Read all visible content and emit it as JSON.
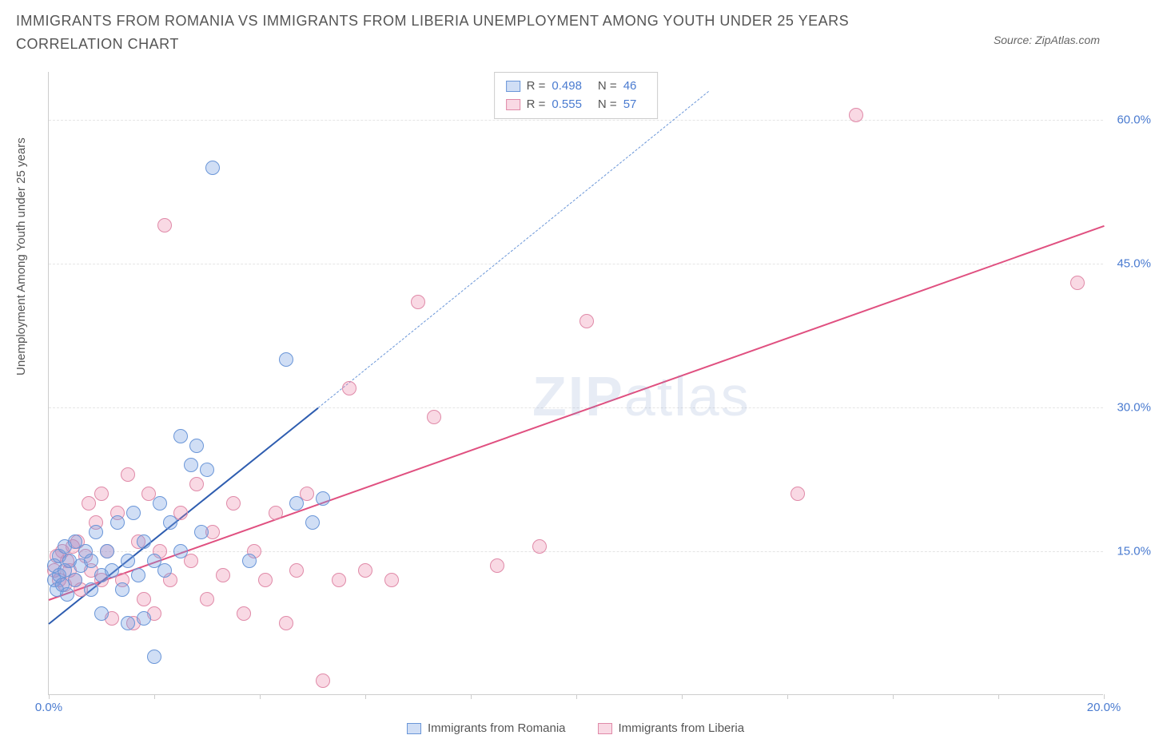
{
  "title": "IMMIGRANTS FROM ROMANIA VS IMMIGRANTS FROM LIBERIA UNEMPLOYMENT AMONG YOUTH UNDER 25 YEARS CORRELATION CHART",
  "source_label": "Source: ZipAtlas.com",
  "y_axis_label": "Unemployment Among Youth under 25 years",
  "watermark_bold": "ZIP",
  "watermark_rest": "atlas",
  "colors": {
    "series_a_fill": "rgba(120,160,225,0.35)",
    "series_a_stroke": "#6a96d8",
    "series_a_line": "#2e5db0",
    "series_b_fill": "rgba(235,130,165,0.3)",
    "series_b_stroke": "#e08aa8",
    "series_b_line": "#e05080",
    "axis_text": "#4a7bd0",
    "grid": "#e5e5e5",
    "title_text": "#555555"
  },
  "chart": {
    "type": "scatter",
    "x_min": 0,
    "x_max": 20,
    "y_min": 0,
    "y_max": 65,
    "y_ticks": [
      15,
      30,
      45,
      60
    ],
    "y_tick_labels": [
      "15.0%",
      "30.0%",
      "45.0%",
      "60.0%"
    ],
    "x_ticks": [
      0,
      2,
      4,
      6,
      8,
      10,
      12,
      14,
      16,
      18,
      20
    ],
    "x_tick_labels_shown": {
      "0": "0.0%",
      "20": "20.0%"
    },
    "point_radius": 9
  },
  "legend_top": [
    {
      "swatch_fill": "rgba(120,160,225,0.35)",
      "swatch_stroke": "#6a96d8",
      "r_label": "R =",
      "r_val": "0.498",
      "n_label": "N =",
      "n_val": "46"
    },
    {
      "swatch_fill": "rgba(235,130,165,0.3)",
      "swatch_stroke": "#e08aa8",
      "r_label": "R =",
      "r_val": "0.555",
      "n_label": "N =",
      "n_val": "57"
    }
  ],
  "legend_bottom": [
    {
      "swatch_fill": "rgba(120,160,225,0.35)",
      "swatch_stroke": "#6a96d8",
      "label": "Immigrants from Romania"
    },
    {
      "swatch_fill": "rgba(235,130,165,0.3)",
      "swatch_stroke": "#e08aa8",
      "label": "Immigrants from Liberia"
    }
  ],
  "series_a": {
    "name": "Immigrants from Romania",
    "trend_solid": {
      "x1": 0,
      "y1": 7.5,
      "x2": 5.1,
      "y2": 30
    },
    "trend_dash": {
      "x1": 5.1,
      "y1": 30,
      "x2": 12.5,
      "y2": 63
    },
    "points": [
      [
        0.1,
        12
      ],
      [
        0.1,
        13.5
      ],
      [
        0.15,
        11
      ],
      [
        0.2,
        14.5
      ],
      [
        0.2,
        12.5
      ],
      [
        0.25,
        11.5
      ],
      [
        0.3,
        13
      ],
      [
        0.3,
        15.5
      ],
      [
        0.35,
        10.5
      ],
      [
        0.4,
        14
      ],
      [
        0.5,
        12
      ],
      [
        0.5,
        16
      ],
      [
        0.6,
        13.5
      ],
      [
        0.7,
        15
      ],
      [
        0.8,
        11
      ],
      [
        0.8,
        14
      ],
      [
        0.9,
        17
      ],
      [
        1.0,
        12.5
      ],
      [
        1.0,
        8.5
      ],
      [
        1.1,
        15
      ],
      [
        1.2,
        13
      ],
      [
        1.3,
        18
      ],
      [
        1.4,
        11
      ],
      [
        1.5,
        14
      ],
      [
        1.5,
        7.5
      ],
      [
        1.6,
        19
      ],
      [
        1.7,
        12.5
      ],
      [
        1.8,
        16
      ],
      [
        1.8,
        8
      ],
      [
        2.0,
        14
      ],
      [
        2.0,
        4
      ],
      [
        2.1,
        20
      ],
      [
        2.2,
        13
      ],
      [
        2.3,
        18
      ],
      [
        2.5,
        15
      ],
      [
        2.5,
        27
      ],
      [
        2.7,
        24
      ],
      [
        2.8,
        26
      ],
      [
        2.9,
        17
      ],
      [
        3.0,
        23.5
      ],
      [
        3.1,
        55
      ],
      [
        3.8,
        14
      ],
      [
        4.5,
        35
      ],
      [
        4.7,
        20
      ],
      [
        5.0,
        18
      ],
      [
        5.2,
        20.5
      ]
    ]
  },
  "series_b": {
    "name": "Immigrants from Liberia",
    "trend_solid": {
      "x1": 0,
      "y1": 10,
      "x2": 20,
      "y2": 49
    },
    "points": [
      [
        0.1,
        13
      ],
      [
        0.15,
        14.5
      ],
      [
        0.2,
        12
      ],
      [
        0.25,
        15
      ],
      [
        0.3,
        11.5
      ],
      [
        0.35,
        14
      ],
      [
        0.4,
        13
      ],
      [
        0.45,
        15.5
      ],
      [
        0.5,
        12
      ],
      [
        0.55,
        16
      ],
      [
        0.6,
        11
      ],
      [
        0.7,
        14.5
      ],
      [
        0.75,
        20
      ],
      [
        0.8,
        13
      ],
      [
        0.9,
        18
      ],
      [
        1.0,
        12
      ],
      [
        1.0,
        21
      ],
      [
        1.1,
        15
      ],
      [
        1.2,
        8
      ],
      [
        1.3,
        19
      ],
      [
        1.4,
        12
      ],
      [
        1.5,
        23
      ],
      [
        1.6,
        7.5
      ],
      [
        1.7,
        16
      ],
      [
        1.8,
        10
      ],
      [
        1.9,
        21
      ],
      [
        2.0,
        8.5
      ],
      [
        2.1,
        15
      ],
      [
        2.2,
        49
      ],
      [
        2.3,
        12
      ],
      [
        2.5,
        19
      ],
      [
        2.7,
        14
      ],
      [
        2.8,
        22
      ],
      [
        3.0,
        10
      ],
      [
        3.1,
        17
      ],
      [
        3.3,
        12.5
      ],
      [
        3.5,
        20
      ],
      [
        3.7,
        8.5
      ],
      [
        3.9,
        15
      ],
      [
        4.1,
        12
      ],
      [
        4.3,
        19
      ],
      [
        4.5,
        7.5
      ],
      [
        4.7,
        13
      ],
      [
        4.9,
        21
      ],
      [
        5.2,
        1.5
      ],
      [
        5.5,
        12
      ],
      [
        5.7,
        32
      ],
      [
        6.0,
        13
      ],
      [
        6.5,
        12
      ],
      [
        7.0,
        41
      ],
      [
        7.3,
        29
      ],
      [
        8.5,
        13.5
      ],
      [
        9.3,
        15.5
      ],
      [
        10.2,
        39
      ],
      [
        14.2,
        21
      ],
      [
        15.3,
        60.5
      ],
      [
        19.5,
        43
      ]
    ]
  }
}
